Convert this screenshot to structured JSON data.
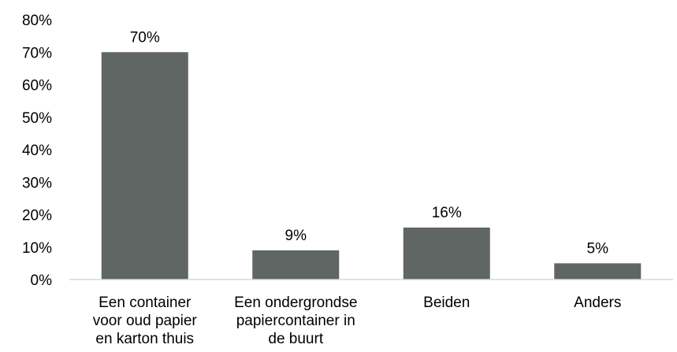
{
  "chart_data": {
    "type": "bar",
    "categories": [
      [
        "Een container",
        "voor oud papier",
        "en karton thuis"
      ],
      [
        "Een ondergrondse",
        "papiercontainer in",
        "de buurt"
      ],
      [
        "Beiden"
      ],
      [
        "Anders"
      ]
    ],
    "values": [
      70,
      9,
      16,
      5
    ],
    "data_labels": [
      "70%",
      "9%",
      "16%",
      "5%"
    ],
    "title": "",
    "xlabel": "",
    "ylabel": "",
    "ylim": [
      0,
      80
    ],
    "yticks": [
      0,
      10,
      20,
      30,
      40,
      50,
      60,
      70,
      80
    ],
    "ytick_labels": [
      "0%",
      "10%",
      "20%",
      "30%",
      "40%",
      "50%",
      "60%",
      "70%",
      "80%"
    ],
    "grid": false,
    "legend": "none",
    "bar_color": "#5f6663",
    "axis_color": "#d9d9d9"
  }
}
